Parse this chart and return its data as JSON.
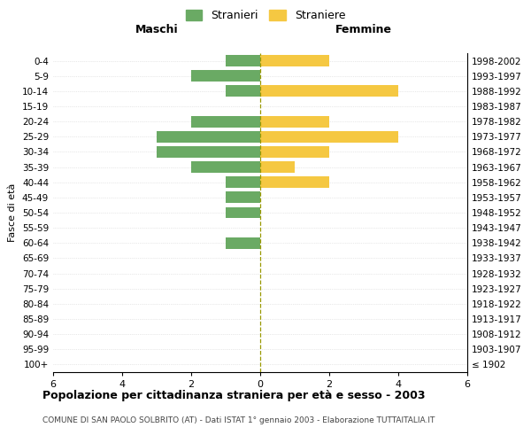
{
  "age_groups": [
    "100+",
    "95-99",
    "90-94",
    "85-89",
    "80-84",
    "75-79",
    "70-74",
    "65-69",
    "60-64",
    "55-59",
    "50-54",
    "45-49",
    "40-44",
    "35-39",
    "30-34",
    "25-29",
    "20-24",
    "15-19",
    "10-14",
    "5-9",
    "0-4"
  ],
  "birth_years": [
    "≤ 1902",
    "1903-1907",
    "1908-1912",
    "1913-1917",
    "1918-1922",
    "1923-1927",
    "1928-1932",
    "1933-1937",
    "1938-1942",
    "1943-1947",
    "1948-1952",
    "1953-1957",
    "1958-1962",
    "1963-1967",
    "1968-1972",
    "1973-1977",
    "1978-1982",
    "1983-1987",
    "1988-1992",
    "1993-1997",
    "1998-2002"
  ],
  "maschi": [
    0,
    0,
    0,
    0,
    0,
    0,
    0,
    0,
    1,
    0,
    1,
    1,
    1,
    2,
    3,
    3,
    2,
    0,
    1,
    2,
    1
  ],
  "femmine": [
    0,
    0,
    0,
    0,
    0,
    0,
    0,
    0,
    0,
    0,
    0,
    0,
    2,
    1,
    2,
    4,
    2,
    0,
    4,
    0,
    2
  ],
  "color_maschi": "#6aaa64",
  "color_femmine": "#f5c842",
  "xlim": 6,
  "title": "Popolazione per cittadinanza straniera per età e sesso - 2003",
  "subtitle": "COMUNE DI SAN PAOLO SOLBRITO (AT) - Dati ISTAT 1° gennaio 2003 - Elaborazione TUTTAITALIA.IT",
  "ylabel_left": "Fasce di età",
  "label_maschi": "Stranieri",
  "label_femmine": "Straniere",
  "header_maschi": "Maschi",
  "header_femmine": "Femmine"
}
